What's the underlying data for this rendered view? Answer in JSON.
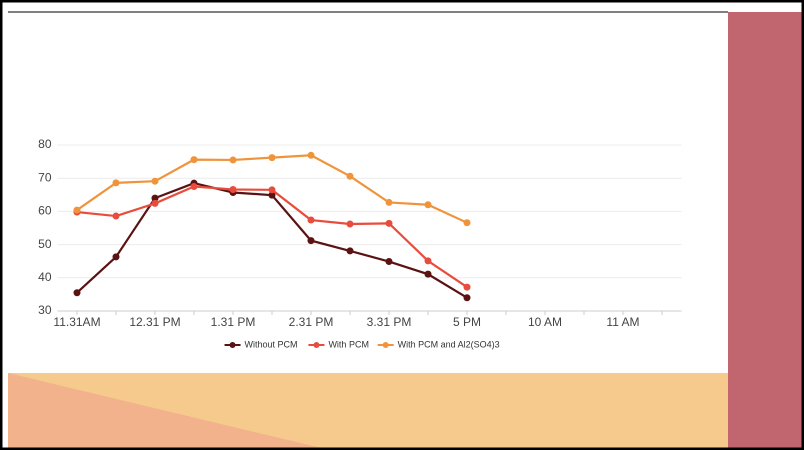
{
  "chart_data": {
    "type": "line",
    "categories": [
      "11.31AM",
      null,
      "12.31 PM",
      null,
      "1.31 PM",
      null,
      "2.31 PM",
      null,
      "3.31 PM",
      null,
      "5 PM",
      null,
      "10 AM",
      null,
      "11 AM",
      null
    ],
    "series": [
      {
        "name": "Without PCM",
        "color": "#5a1212",
        "values": [
          35.5,
          46.3,
          64,
          68.5,
          65.7,
          64.9,
          51.2,
          48.1,
          44.9,
          41.1,
          34,
          null,
          null,
          null,
          null,
          null
        ]
      },
      {
        "name": "With PCM",
        "color": "#e84c3d",
        "values": [
          59.8,
          58.6,
          62.4,
          67.5,
          66.6,
          66.5,
          57.4,
          56.2,
          56.4,
          45.1,
          37.2,
          null,
          null,
          null,
          null,
          null
        ]
      },
      {
        "name": "With PCM and Al2(SO4)3",
        "color": "#f0943c",
        "values": [
          60.4,
          68.6,
          69.1,
          75.6,
          75.5,
          76.2,
          76.9,
          70.6,
          62.7,
          62,
          56.6,
          null,
          null,
          null,
          null,
          null
        ]
      }
    ],
    "ylim": [
      30,
      80
    ],
    "yticks": [
      30,
      40,
      50,
      60,
      70,
      80
    ],
    "grid": true,
    "legend": "bottom"
  }
}
